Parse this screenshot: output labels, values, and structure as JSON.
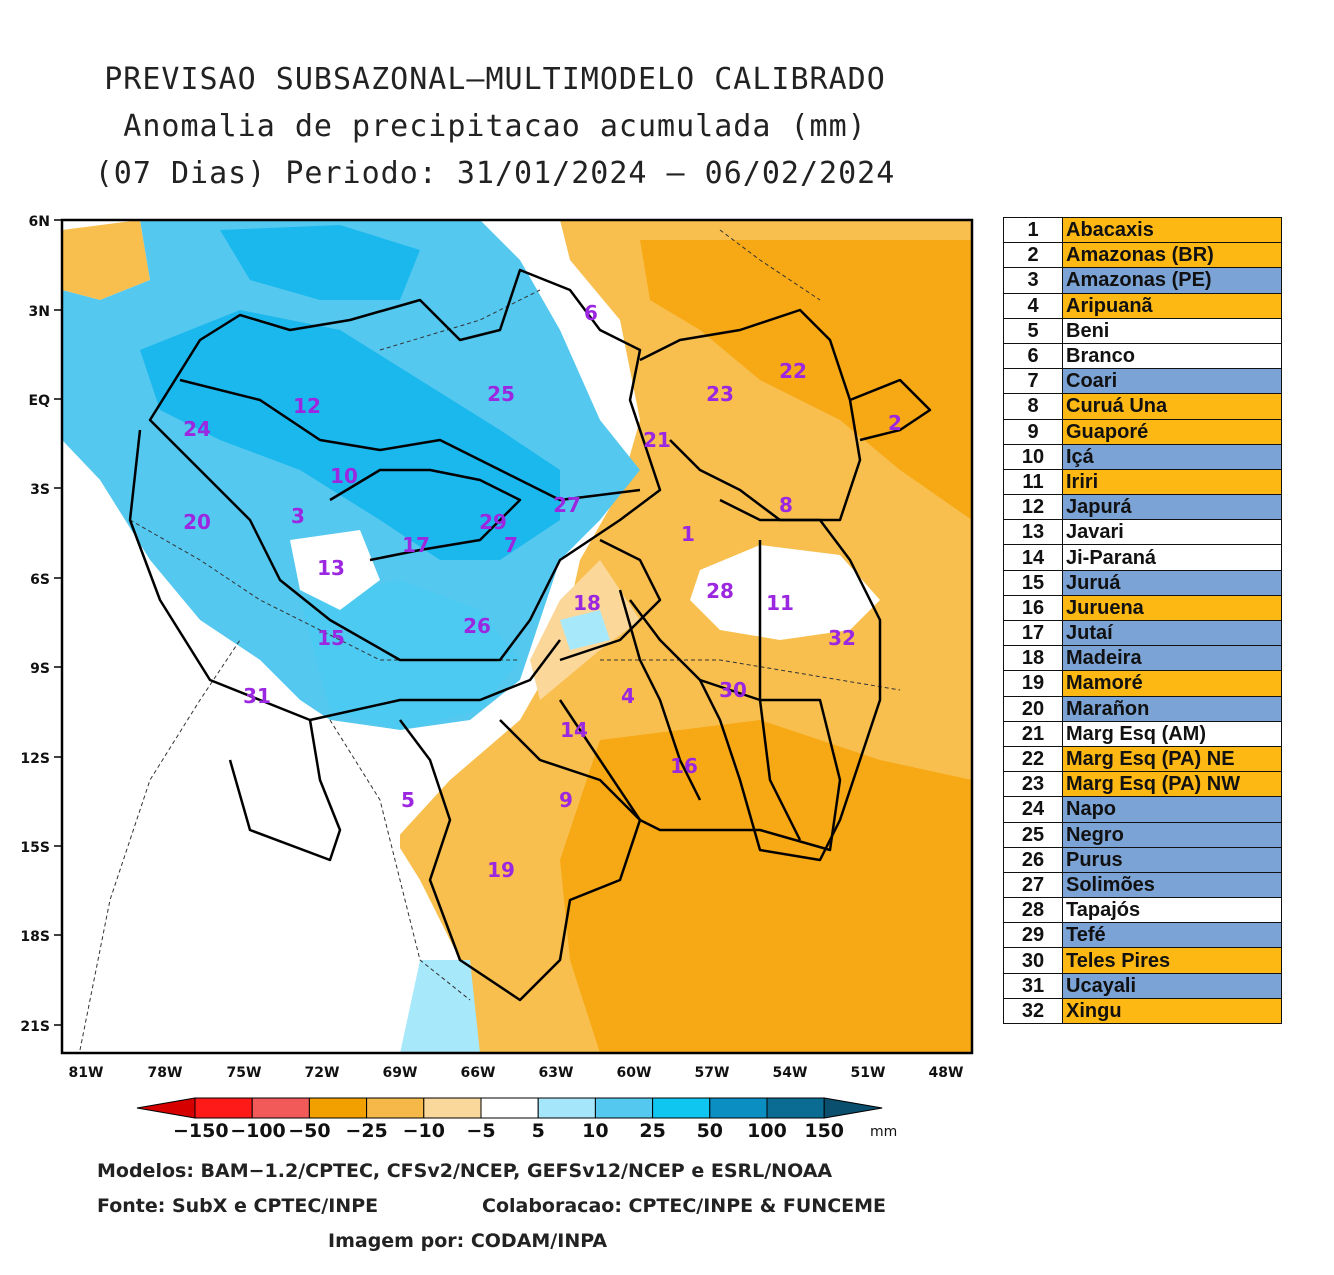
{
  "title": {
    "line1": "PREVISAO SUBSAZONAL—MULTIMODELO CALIBRADO",
    "line2": "Anomalia de precipitacao acumulada (mm)",
    "line3": "(07 Dias) Periodo: 31/01/2024 — 06/02/2024"
  },
  "map": {
    "lat_ticks": [
      "6N",
      "3N",
      "EQ",
      "3S",
      "6S",
      "9S",
      "12S",
      "15S",
      "18S",
      "21S"
    ],
    "lon_ticks": [
      "81W",
      "78W",
      "75W",
      "72W",
      "69W",
      "66W",
      "63W",
      "60W",
      "57W",
      "54W",
      "51W",
      "48W"
    ],
    "basin_numbers": [
      "1",
      "2",
      "3",
      "4",
      "5",
      "6",
      "7",
      "8",
      "9",
      "10",
      "11",
      "12",
      "13",
      "14",
      "15",
      "16",
      "17",
      "18",
      "19",
      "20",
      "21",
      "22",
      "23",
      "24",
      "25",
      "26",
      "27",
      "28",
      "29",
      "30",
      "31",
      "32"
    ],
    "colors": {
      "neg_50": "#f7a915",
      "neg_25": "#f8bf4e",
      "neg_10": "#fbd89a",
      "white": "#ffffff",
      "pos_5": "#a8e8fb",
      "pos_10": "#4ccaf1",
      "pos_25": "#1bb8ee",
      "pos_50": "#17a0d8"
    }
  },
  "colorbar": {
    "labels": [
      "−150",
      "−100",
      "−50",
      "−25",
      "−10",
      "−5",
      "5",
      "10",
      "25",
      "50",
      "100",
      "150"
    ],
    "unit": "mm",
    "colors": [
      "#d60000",
      "#ff1a1a",
      "#f25a5a",
      "#f2a000",
      "#f7b84a",
      "#fad79a",
      "#ffffff",
      "#a6e6fb",
      "#54c8ef",
      "#0ec6f0",
      "#0b8ec2",
      "#0b6c93",
      "#0a4f6d"
    ]
  },
  "legend": [
    {
      "num": "1",
      "name": "Abacaxis",
      "color": "#fdb813"
    },
    {
      "num": "2",
      "name": "Amazonas (BR)",
      "color": "#fdb813"
    },
    {
      "num": "3",
      "name": "Amazonas (PE)",
      "color": "#7ba3d5"
    },
    {
      "num": "4",
      "name": "Aripuanã",
      "color": "#fdb813"
    },
    {
      "num": "5",
      "name": "Beni",
      "color": "#ffffff"
    },
    {
      "num": "6",
      "name": "Branco",
      "color": "#ffffff"
    },
    {
      "num": "7",
      "name": "Coari",
      "color": "#7ba3d5"
    },
    {
      "num": "8",
      "name": "Curuá Una",
      "color": "#fdb813"
    },
    {
      "num": "9",
      "name": "Guaporé",
      "color": "#fdb813"
    },
    {
      "num": "10",
      "name": "Içá",
      "color": "#7ba3d5"
    },
    {
      "num": "11",
      "name": "Iriri",
      "color": "#fdb813"
    },
    {
      "num": "12",
      "name": "Japurá",
      "color": "#7ba3d5"
    },
    {
      "num": "13",
      "name": "Javari",
      "color": "#ffffff"
    },
    {
      "num": "14",
      "name": "Ji-Paraná",
      "color": "#ffffff"
    },
    {
      "num": "15",
      "name": "Juruá",
      "color": "#7ba3d5"
    },
    {
      "num": "16",
      "name": "Juruena",
      "color": "#fdb813"
    },
    {
      "num": "17",
      "name": "Jutaí",
      "color": "#7ba3d5"
    },
    {
      "num": "18",
      "name": "Madeira",
      "color": "#7ba3d5"
    },
    {
      "num": "19",
      "name": "Mamoré",
      "color": "#fdb813"
    },
    {
      "num": "20",
      "name": "Marañon",
      "color": "#7ba3d5"
    },
    {
      "num": "21",
      "name": "Marg Esq (AM)",
      "color": "#ffffff"
    },
    {
      "num": "22",
      "name": "Marg Esq (PA) NE",
      "color": "#fdb813"
    },
    {
      "num": "23",
      "name": "Marg Esq (PA) NW",
      "color": "#fdb813"
    },
    {
      "num": "24",
      "name": "Napo",
      "color": "#7ba3d5"
    },
    {
      "num": "25",
      "name": "Negro",
      "color": "#7ba3d5"
    },
    {
      "num": "26",
      "name": "Purus",
      "color": "#7ba3d5"
    },
    {
      "num": "27",
      "name": "Solimões",
      "color": "#7ba3d5"
    },
    {
      "num": "28",
      "name": "Tapajós",
      "color": "#ffffff"
    },
    {
      "num": "29",
      "name": "Tefé",
      "color": "#7ba3d5"
    },
    {
      "num": "30",
      "name": "Teles Pires",
      "color": "#fdb813"
    },
    {
      "num": "31",
      "name": "Ucayali",
      "color": "#7ba3d5"
    },
    {
      "num": "32",
      "name": "Xingu",
      "color": "#fdb813"
    }
  ],
  "footer": {
    "models": "Modelos: BAM−1.2/CPTEC, CFSv2/NCEP, GEFSv12/NCEP e ESRL/NOAA",
    "source": "Fonte: SubX e CPTEC/INPE",
    "collab": "Colaboracao: CPTEC/INPE & FUNCEME",
    "image_by": "Imagem por: CODAM/INPA"
  }
}
